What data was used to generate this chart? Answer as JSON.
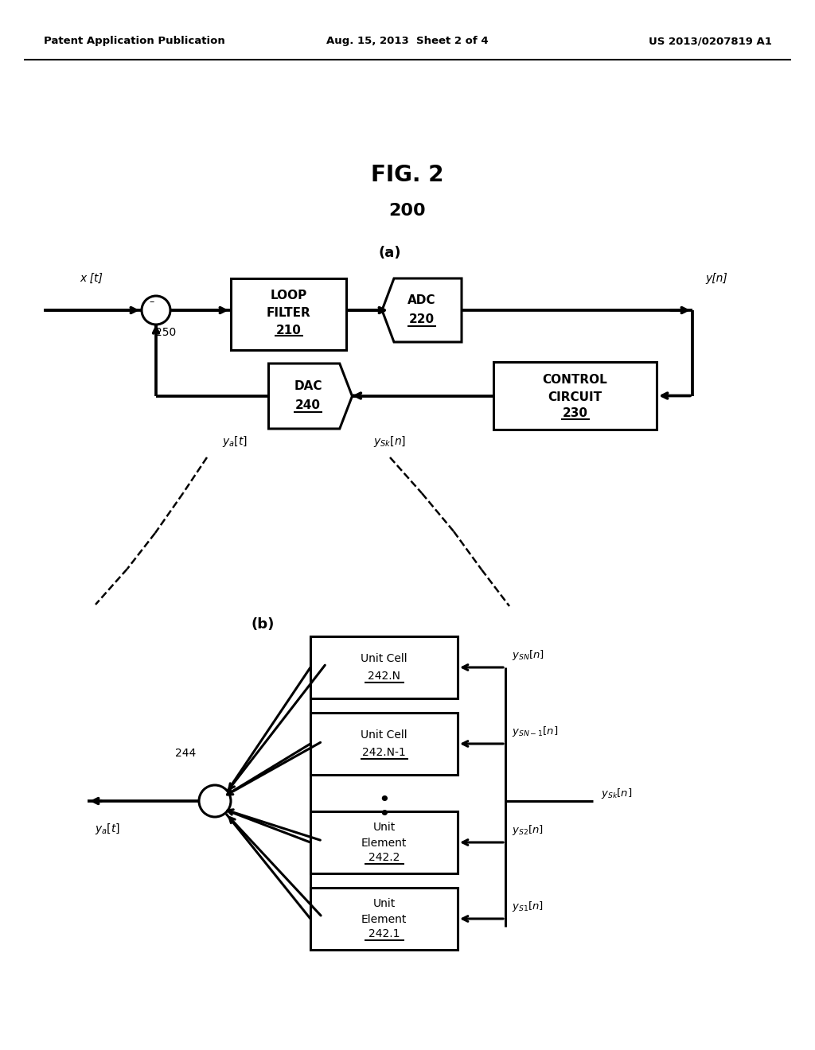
{
  "bg_color": "#ffffff",
  "header_left": "Patent Application Publication",
  "header_mid": "Aug. 15, 2013  Sheet 2 of 4",
  "header_right": "US 2013/0207819 A1",
  "fig_label": "FIG. 2",
  "fig_number": "200",
  "section_a_label": "(a)",
  "section_b_label": "(b)"
}
